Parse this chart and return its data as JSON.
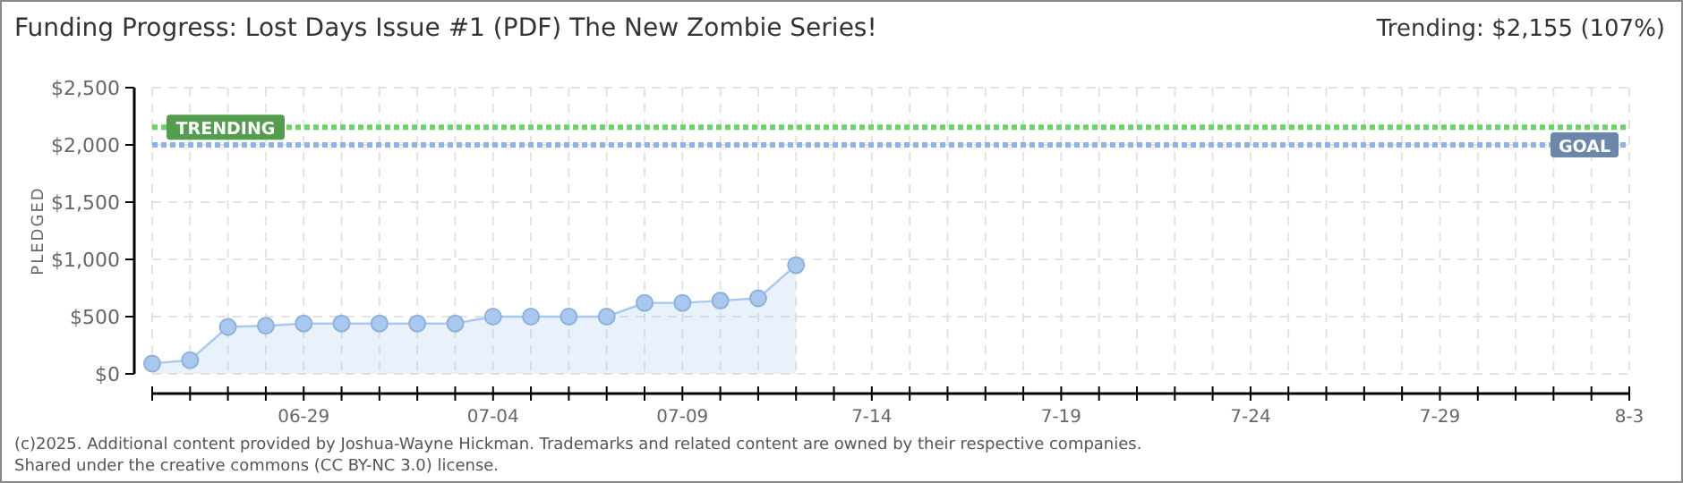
{
  "chart_data": {
    "type": "area",
    "title": "Funding Progress: Lost Days Issue #1 (PDF) The New Zombie Series!",
    "ylabel": "PLEDGED",
    "x": [
      "--06-25",
      "--06-26",
      "--06-27",
      "--06-28",
      "--06-29",
      "--06-30",
      "--07-01",
      "--07-02",
      "--07-03",
      "--07-04",
      "--07-05",
      "--07-06",
      "--07-07",
      "--07-08",
      "--07-09",
      "--07-10",
      "--07-11",
      "--07-12"
    ],
    "series": [
      {
        "color": "#a9c8ef",
        "values": [
          90,
          120,
          410,
          420,
          440,
          440,
          440,
          440,
          440,
          500,
          500,
          500,
          500,
          620,
          620,
          640,
          660,
          950
        ]
      }
    ],
    "xlim": [
      "--06-25",
      "--08-03"
    ],
    "xticks": [
      {
        "value": "--06-25",
        "label": null
      },
      {
        "value": "--06-26",
        "label": null
      },
      {
        "value": "--06-27",
        "label": null
      },
      {
        "value": "--06-28",
        "label": null
      },
      {
        "value": "--06-29",
        "label": "06-29"
      },
      {
        "value": "--06-30",
        "label": null
      },
      {
        "value": "--07-01",
        "label": null
      },
      {
        "value": "--07-02",
        "label": null
      },
      {
        "value": "--07-03",
        "label": null
      },
      {
        "value": "--07-04",
        "label": "07-04"
      },
      {
        "value": "--07-05",
        "label": null
      },
      {
        "value": "--07-06",
        "label": null
      },
      {
        "value": "--07-07",
        "label": null
      },
      {
        "value": "--07-08",
        "label": null
      },
      {
        "value": "--07-09",
        "label": "07-09"
      },
      {
        "value": "--07-10",
        "label": null
      },
      {
        "value": "--07-11",
        "label": null
      },
      {
        "value": "--07-12",
        "label": null
      },
      {
        "value": "--07-13",
        "label": null
      },
      {
        "value": "--07-14",
        "label": "7-14"
      },
      {
        "value": "--07-15",
        "label": null
      },
      {
        "value": "--07-16",
        "label": null
      },
      {
        "value": "--07-17",
        "label": null
      },
      {
        "value": "--07-18",
        "label": null
      },
      {
        "value": "--07-19",
        "label": "7-19"
      },
      {
        "value": "--07-20",
        "label": null
      },
      {
        "value": "--07-21",
        "label": null
      },
      {
        "value": "--07-22",
        "label": null
      },
      {
        "value": "--07-23",
        "label": null
      },
      {
        "value": "--07-24",
        "label": "7-24"
      },
      {
        "value": "--07-25",
        "label": null
      },
      {
        "value": "--07-26",
        "label": null
      },
      {
        "value": "--07-27",
        "label": null
      },
      {
        "value": "--07-28",
        "label": null
      },
      {
        "value": "--07-29",
        "label": "7-29"
      },
      {
        "value": "--07-30",
        "label": null
      },
      {
        "value": "--07-31",
        "label": null
      },
      {
        "value": "--08-01",
        "label": null
      },
      {
        "value": "--08-02",
        "label": null
      },
      {
        "value": "--08-03",
        "label": "8-3"
      }
    ],
    "ylim": [
      0,
      2500
    ],
    "yticks": [
      {
        "value": 0,
        "label": "$0"
      },
      {
        "value": 500,
        "label": "$500"
      },
      {
        "value": 1000,
        "label": "$1,000"
      },
      {
        "value": 1500,
        "label": "$1,500"
      },
      {
        "value": 2000,
        "label": "$2,000"
      },
      {
        "value": 2500,
        "label": "$2,500"
      }
    ],
    "grid": true,
    "marker": "circle",
    "ref_lines": [
      {
        "axis": "y",
        "value": 2155,
        "label": "TRENDING",
        "color": "#6fcf6a",
        "line_style": "dotted"
      },
      {
        "axis": "y",
        "value": 2000,
        "label": "GOAL",
        "color": "#8fb3e0",
        "line_style": "dotted"
      }
    ],
    "annotations": [
      "Trending:  $2,155 (107%)",
      "(c)2025. Additional content provided by Joshua-Wayne Hickman. Trademarks and related content are owned by their respective companies.",
      "Shared under the creative commons (CC BY-NC 3.0) license."
    ]
  }
}
